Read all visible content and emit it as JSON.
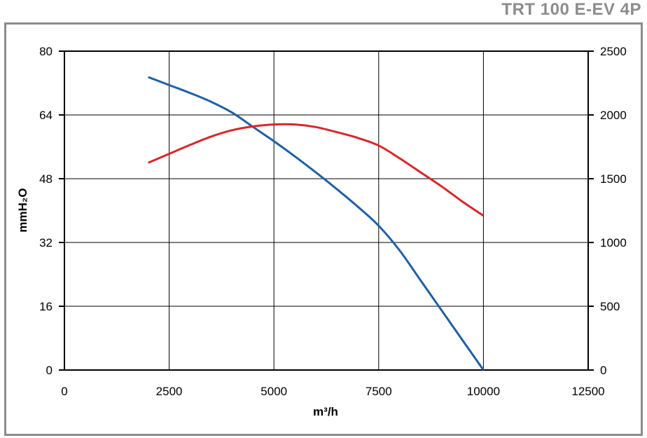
{
  "title": "TRT 100 E-EV 4P",
  "chart_data": {
    "type": "line",
    "xlabel": "m³/h",
    "ylabel": "mmH₂O",
    "xlim": [
      0,
      12500
    ],
    "ylim_left": [
      0,
      80
    ],
    "ylim_right": [
      0,
      2500
    ],
    "x_ticks": [
      "0",
      "2500",
      "5000",
      "7500",
      "10000",
      "12500"
    ],
    "y_left_ticks": [
      "0",
      "16",
      "32",
      "48",
      "64",
      "80"
    ],
    "y_right_ticks": [
      "0",
      "500",
      "1000",
      "1500",
      "2000",
      "2500"
    ],
    "grid": true,
    "series": [
      {
        "axis": "left",
        "color": "#1f5fa5",
        "x": [
          2000,
          2500,
          3000,
          3500,
          4000,
          4500,
          5000,
          5500,
          6000,
          6500,
          7000,
          7500,
          8000,
          8500,
          9000,
          9500,
          10000
        ],
        "y": [
          73.5,
          71.5,
          69.5,
          67.3,
          64.6,
          61.0,
          57.4,
          53.6,
          49.6,
          45.4,
          41.0,
          36.2,
          30.0,
          22.5,
          15.0,
          7.5,
          0
        ]
      },
      {
        "axis": "right",
        "color": "#d9262b",
        "x": [
          2000,
          2500,
          3000,
          3500,
          4000,
          4500,
          5000,
          5500,
          6000,
          6500,
          7000,
          7500,
          8000,
          8500,
          9000,
          9500,
          10000
        ],
        "y": [
          1625,
          1695,
          1765,
          1830,
          1880,
          1910,
          1925,
          1925,
          1905,
          1865,
          1820,
          1760,
          1660,
          1550,
          1440,
          1320,
          1210
        ]
      }
    ]
  }
}
